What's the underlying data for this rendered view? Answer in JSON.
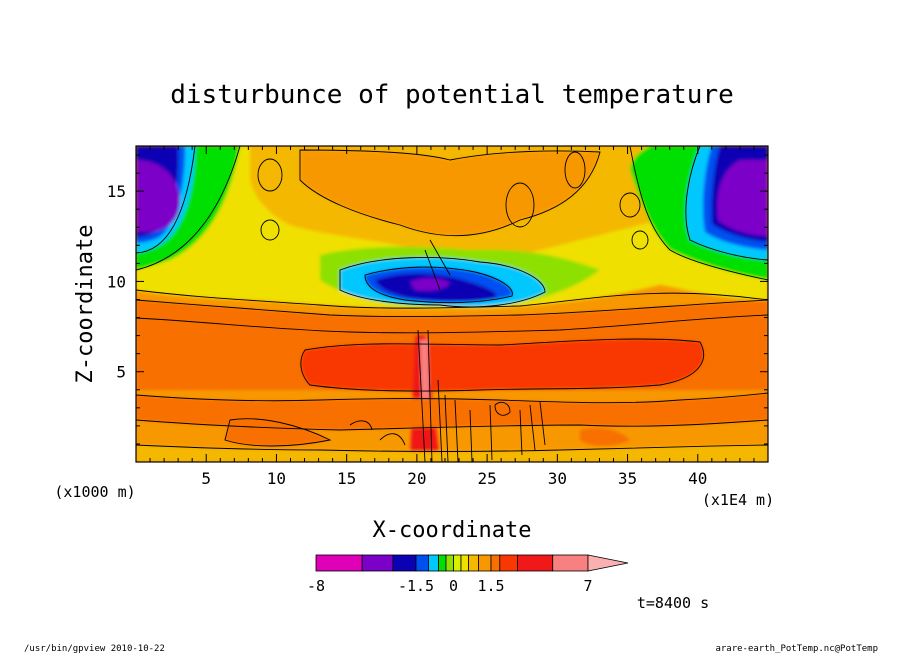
{
  "chart_data": {
    "type": "heatmap",
    "title": "disturbunce of potential temperature",
    "xlabel": "X-coordinate",
    "ylabel": "Z-coordinate",
    "x_unit": "(x1E4 m)",
    "y_unit": "(x1000 m)",
    "xlim": [
      0,
      45
    ],
    "ylim": [
      0,
      17.5
    ],
    "x_ticks": [
      5,
      10,
      15,
      20,
      25,
      30,
      35,
      40
    ],
    "y_ticks": [
      5,
      10,
      15
    ],
    "colorbar": {
      "levels": [
        -8,
        -5,
        -3,
        -1.5,
        -1,
        -0.6,
        -0.3,
        0,
        0.3,
        0.6,
        1,
        1.5,
        2,
        3,
        5,
        7
      ],
      "colors": [
        "#e000b8",
        "#7b00c8",
        "#0a00b4",
        "#0050f0",
        "#00c8ff",
        "#00e000",
        "#8ee000",
        "#d8f000",
        "#f0e000",
        "#f4b800",
        "#f89800",
        "#f87000",
        "#f83800",
        "#f01818",
        "#f88080",
        "#f8b0b0"
      ],
      "tick_labels": [
        "-8",
        "-1.5",
        "0",
        "1.5",
        "7"
      ],
      "tick_values": [
        -8,
        -1.5,
        0,
        1.5,
        7
      ]
    },
    "time_label": "t=8400 s",
    "grid": false
  },
  "footer": {
    "left": "/usr/bin/gpview   2010-10-22",
    "right": "arare-earth_PotTemp.nc@PotTemp"
  }
}
